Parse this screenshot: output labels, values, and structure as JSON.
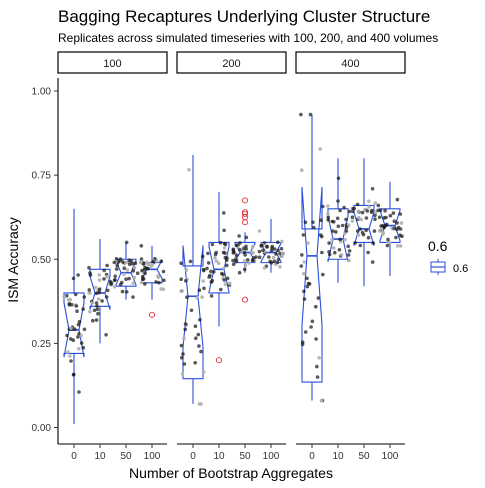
{
  "chart_data": {
    "type": "boxplot",
    "title": "Bagging Recaptures Underlying Cluster Structure",
    "subtitle": "Replicates across simulated timeseries with 100, 200, and 400 volumes",
    "xlabel": "Number of Bootstrap Aggregates",
    "ylabel": "ISM Accuracy",
    "ylim": [
      -0.05,
      1.05
    ],
    "y_ticks": [
      "0.00",
      "0.25",
      "0.50",
      "0.75",
      "1.00"
    ],
    "y_tick_values": [
      0,
      0.25,
      0.5,
      0.75,
      1.0
    ],
    "categories": [
      "0",
      "10",
      "50",
      "100"
    ],
    "grid": false,
    "legend": {
      "title": "0.6",
      "entries": [
        "0.6"
      ],
      "placement": "right",
      "color": "#2a4fdc"
    },
    "colors": {
      "box": "#2a4fdc",
      "points": "#1a1a1a",
      "gray_points": "#b0b0b0",
      "outliers": "#e8333d"
    },
    "panels": [
      {
        "label": "100",
        "boxes": [
          {
            "category": "0",
            "min": 0.01,
            "q1": 0.22,
            "median": 0.29,
            "q3": 0.4,
            "max": 0.65,
            "outliers": []
          },
          {
            "category": "10",
            "min": 0.25,
            "q1": 0.36,
            "median": 0.4,
            "q3": 0.47,
            "max": 0.56,
            "outliers": []
          },
          {
            "category": "50",
            "min": 0.38,
            "q1": 0.42,
            "median": 0.46,
            "q3": 0.5,
            "max": 0.55,
            "outliers": []
          },
          {
            "category": "100",
            "min": 0.38,
            "q1": 0.43,
            "median": 0.47,
            "q3": 0.49,
            "max": 0.54,
            "outliers": [
              0.335
            ]
          }
        ]
      },
      {
        "label": "200",
        "boxes": [
          {
            "category": "0",
            "min": 0.07,
            "q1": 0.145,
            "median": 0.39,
            "q3": 0.48,
            "max": 0.81,
            "outliers": []
          },
          {
            "category": "10",
            "min": 0.3,
            "q1": 0.4,
            "median": 0.47,
            "q3": 0.55,
            "max": 0.7,
            "outliers": [
              0.2
            ]
          },
          {
            "category": "50",
            "min": 0.46,
            "q1": 0.49,
            "median": 0.52,
            "q3": 0.55,
            "max": 0.58,
            "outliers": [
              0.38,
              0.61,
              0.625,
              0.635,
              0.64,
              0.675
            ]
          },
          {
            "category": "100",
            "min": 0.46,
            "q1": 0.49,
            "median": 0.52,
            "q3": 0.55,
            "max": 0.62,
            "outliers": []
          }
        ]
      },
      {
        "label": "400",
        "boxes": [
          {
            "category": "0",
            "min": 0.08,
            "q1": 0.135,
            "median": 0.51,
            "q3": 0.59,
            "max": 0.93,
            "outliers": []
          },
          {
            "category": "10",
            "min": 0.43,
            "q1": 0.5,
            "median": 0.56,
            "q3": 0.65,
            "max": 0.8,
            "outliers": []
          },
          {
            "category": "50",
            "min": 0.42,
            "q1": 0.55,
            "median": 0.59,
            "q3": 0.66,
            "max": 0.8,
            "outliers": []
          },
          {
            "category": "100",
            "min": 0.45,
            "q1": 0.55,
            "median": 0.6,
            "q3": 0.65,
            "max": 0.73,
            "outliers": []
          }
        ]
      }
    ]
  }
}
